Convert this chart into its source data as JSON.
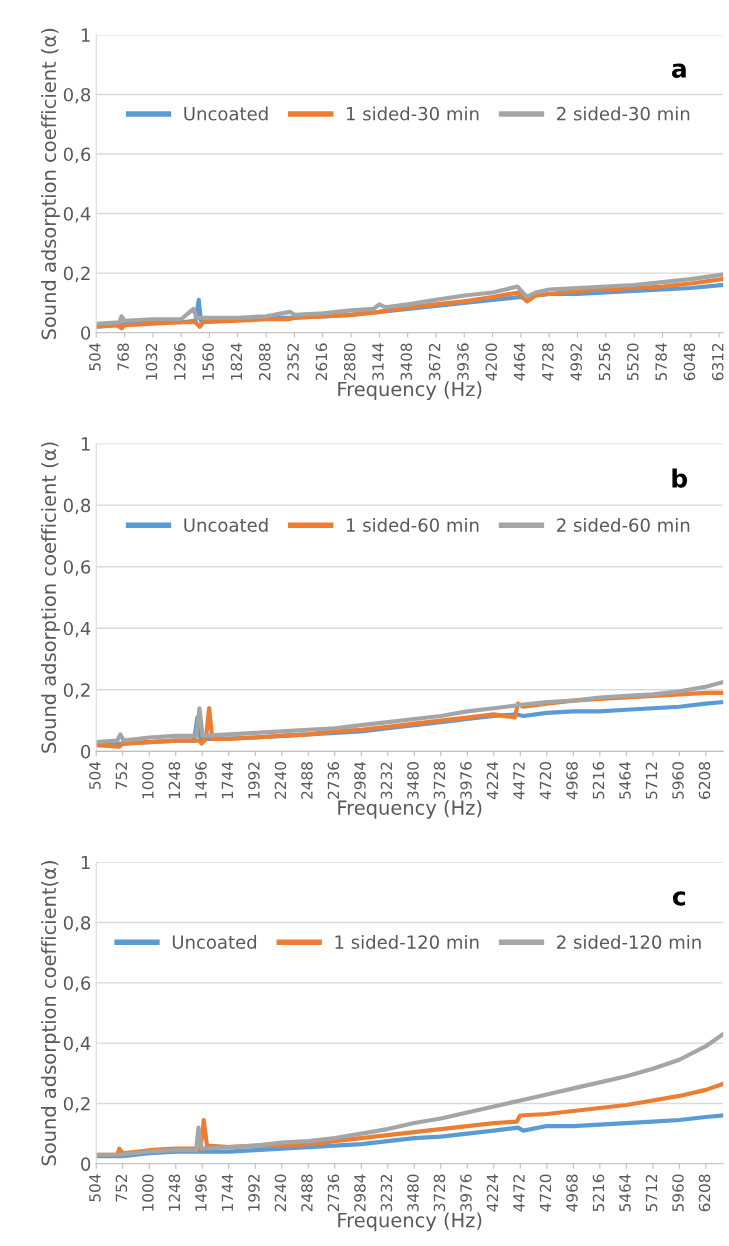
{
  "chart_data": [
    {
      "type": "line",
      "xlabel": "Frequency (Hz)",
      "ylabel": "Sound adsorption coefficient (α)",
      "annotations": [
        "a"
      ],
      "grid": "y",
      "legend": "top",
      "marker": "none",
      "line_style": "solid",
      "xlim": [
        504,
        6350
      ],
      "xticks": [
        504,
        768,
        1032,
        1296,
        1560,
        1824,
        2088,
        2352,
        2616,
        2880,
        3144,
        3408,
        3672,
        3936,
        4200,
        4464,
        4728,
        4992,
        5256,
        5520,
        5784,
        6048,
        6312
      ],
      "ylim": [
        0,
        1
      ],
      "yticks": [
        0,
        {
          "value": 0.2,
          "label": "0,2"
        },
        {
          "value": 0.4,
          "label": "0,4"
        },
        {
          "value": 0.6,
          "label": "0,6"
        },
        {
          "value": 0.8,
          "label": "0,8"
        },
        1
      ],
      "series": [
        {
          "name": "Uncoated",
          "color": "#5b9bd5",
          "x": [
            504,
            700,
            768,
            1032,
            1296,
            1430,
            1460,
            1480,
            1560,
            1824,
            2088,
            2352,
            2616,
            2880,
            3144,
            3408,
            3672,
            3936,
            4200,
            4464,
            4520,
            4600,
            4728,
            4992,
            5256,
            5520,
            5784,
            6048,
            6340
          ],
          "values": [
            0.02,
            0.025,
            0.03,
            0.035,
            0.035,
            0.04,
            0.11,
            0.04,
            0.04,
            0.045,
            0.05,
            0.05,
            0.055,
            0.06,
            0.07,
            0.08,
            0.09,
            0.1,
            0.11,
            0.12,
            0.11,
            0.125,
            0.13,
            0.13,
            0.135,
            0.14,
            0.145,
            0.15,
            0.16
          ]
        },
        {
          "name": "1 sided-30 min",
          "color": "#ed7d31",
          "x": [
            504,
            700,
            740,
            768,
            1032,
            1296,
            1430,
            1470,
            1500,
            1824,
            2088,
            2300,
            2352,
            2616,
            2880,
            3144,
            3408,
            3672,
            3936,
            4200,
            4440,
            4520,
            4600,
            4728,
            4992,
            5256,
            5520,
            5784,
            6048,
            6340
          ],
          "values": [
            0.02,
            0.025,
            0.015,
            0.025,
            0.03,
            0.035,
            0.035,
            0.02,
            0.035,
            0.04,
            0.045,
            0.045,
            0.05,
            0.055,
            0.06,
            0.07,
            0.085,
            0.095,
            0.105,
            0.12,
            0.135,
            0.105,
            0.125,
            0.13,
            0.14,
            0.145,
            0.15,
            0.155,
            0.165,
            0.18
          ]
        },
        {
          "name": "2 sided-30 min",
          "color": "#a5a5a5",
          "x": [
            504,
            720,
            740,
            768,
            1032,
            1296,
            1410,
            1440,
            1560,
            1824,
            2088,
            2310,
            2352,
            2616,
            2880,
            3090,
            3144,
            3200,
            3408,
            3672,
            3936,
            4200,
            4430,
            4520,
            4600,
            4728,
            4992,
            5256,
            5520,
            5784,
            6048,
            6340
          ],
          "values": [
            0.03,
            0.035,
            0.055,
            0.04,
            0.045,
            0.045,
            0.08,
            0.05,
            0.05,
            0.05,
            0.055,
            0.07,
            0.06,
            0.065,
            0.075,
            0.08,
            0.095,
            0.085,
            0.095,
            0.11,
            0.125,
            0.135,
            0.155,
            0.12,
            0.135,
            0.145,
            0.15,
            0.155,
            0.16,
            0.17,
            0.18,
            0.195
          ]
        }
      ]
    },
    {
      "type": "line",
      "xlabel": "Frequency (Hz)",
      "ylabel": "Sound adsorption coefficient (α)",
      "annotations": [
        "b"
      ],
      "grid": "y",
      "legend": "top",
      "marker": "none",
      "line_style": "solid",
      "xlim": [
        504,
        6370
      ],
      "xticks": [
        504,
        752,
        1000,
        1248,
        1496,
        1744,
        1992,
        2240,
        2488,
        2736,
        2984,
        3232,
        3480,
        3728,
        3976,
        4224,
        4472,
        4720,
        4968,
        5216,
        5464,
        5712,
        5960,
        6208
      ],
      "ylim": [
        0,
        1
      ],
      "yticks": [
        0,
        {
          "value": 0.2,
          "label": "0,2"
        },
        {
          "value": 0.4,
          "label": "0,4"
        },
        {
          "value": 0.6,
          "label": "0,6"
        },
        {
          "value": 0.8,
          "label": "0,8"
        },
        1
      ],
      "series": [
        {
          "name": "Uncoated",
          "color": "#5b9bd5",
          "x": [
            504,
            752,
            1000,
            1248,
            1420,
            1450,
            1480,
            1600,
            1992,
            2240,
            2488,
            2736,
            2984,
            3232,
            3480,
            3728,
            3976,
            4224,
            4440,
            4500,
            4720,
            4968,
            5216,
            5464,
            5712,
            5960,
            6208,
            6370
          ],
          "values": [
            0.02,
            0.025,
            0.03,
            0.035,
            0.035,
            0.11,
            0.04,
            0.04,
            0.045,
            0.05,
            0.055,
            0.06,
            0.065,
            0.075,
            0.085,
            0.095,
            0.105,
            0.115,
            0.12,
            0.115,
            0.125,
            0.13,
            0.13,
            0.135,
            0.14,
            0.145,
            0.155,
            0.16
          ]
        },
        {
          "name": "1 sided-60 min",
          "color": "#ed7d31",
          "x": [
            504,
            720,
            752,
            1000,
            1248,
            1470,
            1490,
            1530,
            1560,
            1590,
            1744,
            1992,
            2240,
            2488,
            2736,
            2984,
            3232,
            3480,
            3728,
            3976,
            4224,
            4420,
            4450,
            4500,
            4720,
            4968,
            5216,
            5464,
            5712,
            5960,
            6208,
            6370
          ],
          "values": [
            0.02,
            0.015,
            0.025,
            0.03,
            0.035,
            0.035,
            0.025,
            0.04,
            0.14,
            0.04,
            0.04,
            0.045,
            0.05,
            0.055,
            0.065,
            0.07,
            0.08,
            0.09,
            0.1,
            0.11,
            0.12,
            0.11,
            0.155,
            0.145,
            0.155,
            0.165,
            0.17,
            0.175,
            0.18,
            0.185,
            0.19,
            0.19
          ]
        },
        {
          "name": "2 sided-60 min",
          "color": "#a5a5a5",
          "x": [
            504,
            700,
            730,
            760,
            1000,
            1248,
            1440,
            1470,
            1500,
            1744,
            1992,
            2240,
            2488,
            2736,
            2984,
            3232,
            3480,
            3728,
            3976,
            4224,
            4460,
            4720,
            4968,
            5216,
            5464,
            5712,
            5960,
            6208,
            6370
          ],
          "values": [
            0.03,
            0.035,
            0.055,
            0.035,
            0.045,
            0.05,
            0.05,
            0.14,
            0.05,
            0.055,
            0.06,
            0.065,
            0.07,
            0.075,
            0.085,
            0.095,
            0.105,
            0.115,
            0.13,
            0.14,
            0.15,
            0.16,
            0.165,
            0.175,
            0.18,
            0.185,
            0.195,
            0.21,
            0.225
          ]
        }
      ]
    },
    {
      "type": "line",
      "xlabel": "Frequency (Hz)",
      "ylabel": "Sound adsorption coefficient(α)",
      "annotations": [
        "c"
      ],
      "grid": "y",
      "legend": "top",
      "marker": "none",
      "line_style": "solid",
      "xlim": [
        504,
        6370
      ],
      "xticks": [
        504,
        752,
        1000,
        1248,
        1496,
        1744,
        1992,
        2240,
        2488,
        2736,
        2984,
        3232,
        3480,
        3728,
        3976,
        4224,
        4472,
        4720,
        4968,
        5216,
        5464,
        5712,
        5960,
        6208
      ],
      "ylim": [
        0,
        1
      ],
      "yticks": [
        0,
        {
          "value": 0.2,
          "label": "0,2"
        },
        {
          "value": 0.4,
          "label": "0,4"
        },
        {
          "value": 0.6,
          "label": "0,6"
        },
        {
          "value": 0.8,
          "label": "0,8"
        },
        1
      ],
      "series": [
        {
          "name": "Uncoated",
          "color": "#5b9bd5",
          "x": [
            504,
            752,
            1000,
            1248,
            1496,
            1744,
            1992,
            2240,
            2488,
            2736,
            2984,
            3232,
            3480,
            3728,
            3976,
            4224,
            4450,
            4500,
            4720,
            4968,
            5216,
            5464,
            5712,
            5960,
            6208,
            6370
          ],
          "values": [
            0.025,
            0.025,
            0.035,
            0.04,
            0.04,
            0.04,
            0.045,
            0.05,
            0.055,
            0.06,
            0.065,
            0.075,
            0.085,
            0.09,
            0.1,
            0.11,
            0.12,
            0.11,
            0.125,
            0.125,
            0.13,
            0.135,
            0.14,
            0.145,
            0.155,
            0.16
          ]
        },
        {
          "name": "1 sided-120 min",
          "color": "#ed7d31",
          "x": [
            504,
            700,
            720,
            752,
            1000,
            1248,
            1480,
            1510,
            1540,
            1744,
            1992,
            2240,
            2488,
            2736,
            2984,
            3232,
            3480,
            3728,
            3976,
            4224,
            4440,
            4470,
            4720,
            4968,
            5216,
            5464,
            5712,
            5960,
            6208,
            6370
          ],
          "values": [
            0.03,
            0.03,
            0.05,
            0.035,
            0.045,
            0.05,
            0.05,
            0.145,
            0.06,
            0.055,
            0.06,
            0.06,
            0.065,
            0.075,
            0.085,
            0.095,
            0.105,
            0.115,
            0.125,
            0.135,
            0.14,
            0.16,
            0.165,
            0.175,
            0.185,
            0.195,
            0.21,
            0.225,
            0.245,
            0.265
          ]
        },
        {
          "name": "2 sided-120 min",
          "color": "#a5a5a5",
          "x": [
            504,
            700,
            1000,
            1248,
            1440,
            1460,
            1490,
            1744,
            1992,
            2240,
            2488,
            2736,
            2984,
            3232,
            3480,
            3728,
            3976,
            4224,
            4472,
            4720,
            4968,
            5216,
            5464,
            5712,
            5960,
            6208,
            6370
          ],
          "values": [
            0.03,
            0.03,
            0.04,
            0.045,
            0.045,
            0.12,
            0.05,
            0.055,
            0.06,
            0.07,
            0.075,
            0.085,
            0.1,
            0.115,
            0.135,
            0.15,
            0.17,
            0.19,
            0.21,
            0.23,
            0.25,
            0.27,
            0.29,
            0.315,
            0.345,
            0.39,
            0.43
          ]
        }
      ]
    }
  ]
}
